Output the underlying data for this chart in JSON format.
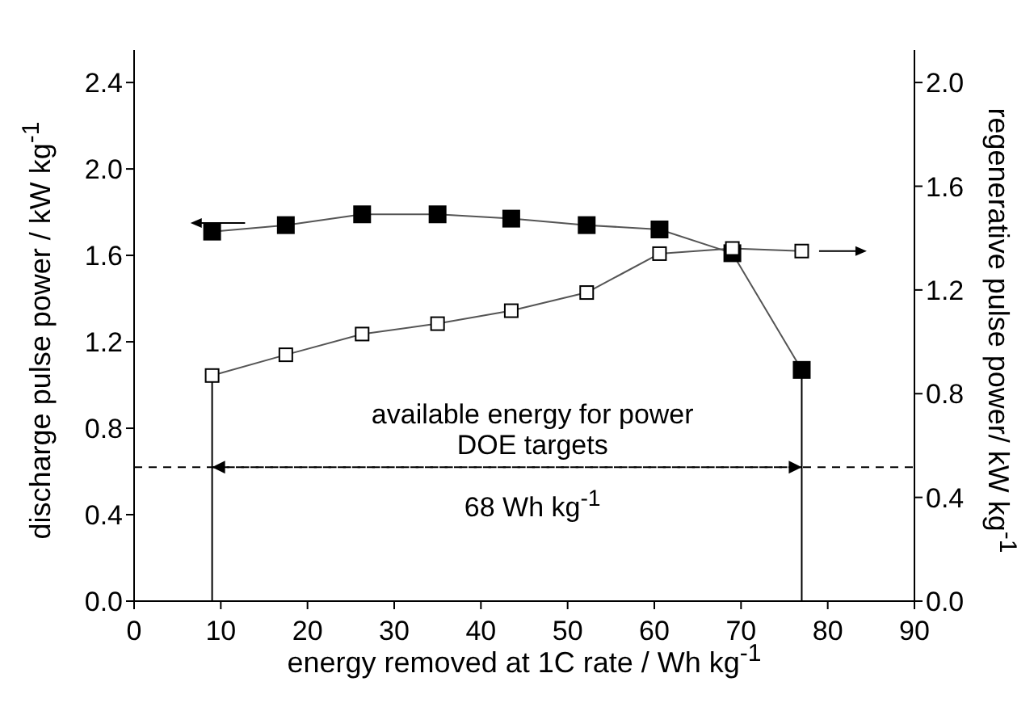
{
  "chart_data": {
    "type": "line",
    "xlabel": "energy removed at 1C rate / Wh kg$^{-1}$",
    "ylabel": "discharge pulse power / kW kg$^{-1}$",
    "y2label": "regenerative pulse power/ kW kg$^{-1}$",
    "x": [
      9,
      17.5,
      26.3,
      35,
      43.5,
      52.2,
      60.6,
      69,
      77
    ],
    "series": [
      {
        "color": "#000000",
        "values": [
          1.71,
          1.74,
          1.79,
          1.79,
          1.77,
          1.74,
          1.72,
          1.61,
          1.07
        ]
      },
      {
        "color": "#000000",
        "axis": "y2",
        "values": [
          0.87,
          0.95,
          1.03,
          1.07,
          1.12,
          1.19,
          1.34,
          1.36,
          1.35
        ]
      }
    ],
    "xlim": [
      0,
      90
    ],
    "xticks": [
      0,
      10,
      20,
      30,
      40,
      50,
      60,
      70,
      80,
      90
    ],
    "ylim": [
      0,
      2.55
    ],
    "yticks": [
      {
        "value": 0,
        "label": "0.0"
      },
      {
        "value": 0.4,
        "label": "0.4"
      },
      {
        "value": 0.8,
        "label": "0.8"
      },
      {
        "value": 1.2,
        "label": "1.2"
      },
      {
        "value": 1.6,
        "label": "1.6"
      },
      {
        "value": 2,
        "label": "2.0"
      },
      {
        "value": 2.4,
        "label": "2.4"
      }
    ],
    "y2lim": [
      0,
      2.125
    ],
    "y2ticks": [
      {
        "value": 0,
        "label": "0.0"
      },
      {
        "value": 0.4,
        "label": "0.4"
      },
      {
        "value": 0.8,
        "label": "0.8"
      },
      {
        "value": 1.2,
        "label": "1.2"
      },
      {
        "value": 1.6,
        "label": "1.6"
      },
      {
        "value": 2,
        "label": "2.0"
      }
    ],
    "ref_lines": [
      {
        "axis": "y",
        "value": 0.62,
        "color": "#000000",
        "line_style": "dashed"
      },
      {
        "axis": "x",
        "value": 9,
        "color": "#000000",
        "line_style": "solid"
      },
      {
        "axis": "x",
        "value": 77,
        "color": "#000000",
        "line_style": "solid"
      }
    ],
    "annotations": [
      "available energy for power",
      "DOE targets",
      "68 Wh kg$^{-1}$"
    ],
    "marker": "square",
    "line_style": "solid"
  }
}
